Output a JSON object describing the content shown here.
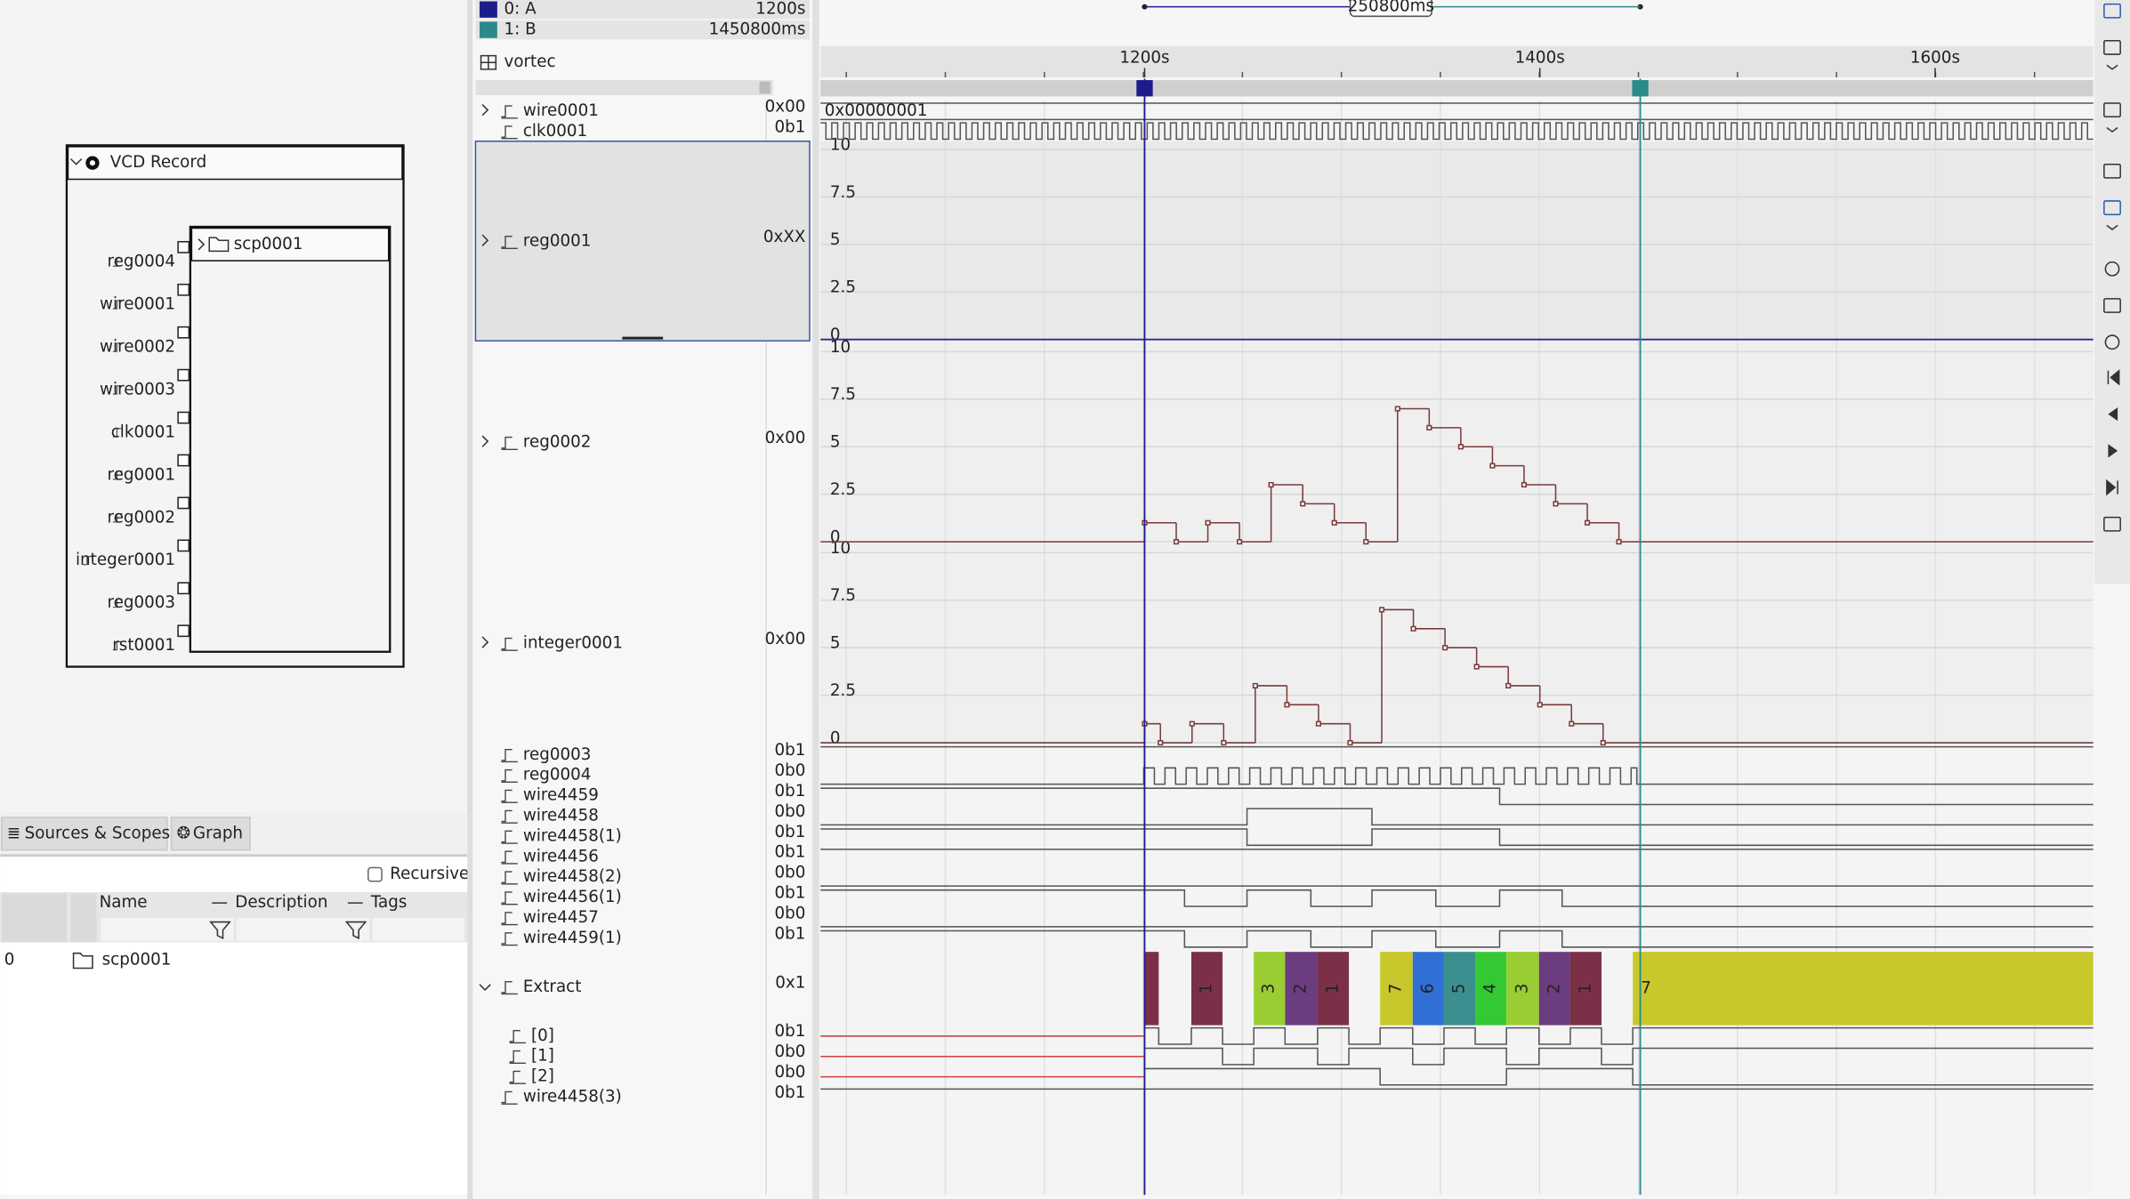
{
  "cursors": [
    {
      "name": "0: A",
      "time": "1200s",
      "position": 1200,
      "color": "#1c1c8c"
    },
    {
      "name": "1: B",
      "time": "1450800ms",
      "position": 1450.8,
      "color": "#2a8a8a"
    }
  ],
  "cursor_delta": "250800ms",
  "timeline": {
    "xlim": [
      1036,
      1680
    ],
    "xticks": [
      {
        "value": 1200,
        "label": "1200s"
      },
      {
        "value": 1400,
        "label": "1400s"
      },
      {
        "value": 1600,
        "label": "1600s"
      }
    ]
  },
  "scope_root": "vortec",
  "signals": [
    {
      "name": "wire0001",
      "value": "0x00"
    },
    {
      "name": "clk0001",
      "value": "0b1"
    },
    {
      "name": "reg0001",
      "value": "0xXX"
    },
    {
      "name": "reg0002",
      "value": "0x00"
    },
    {
      "name": "integer0001",
      "value": "0x00"
    },
    {
      "name": "reg0003",
      "value": "0b1"
    },
    {
      "name": "reg0004",
      "value": "0b0"
    },
    {
      "name": "wire4459",
      "value": "0b1"
    },
    {
      "name": "wire4458",
      "value": "0b0"
    },
    {
      "name": "wire4458(1)",
      "value": "0b1"
    },
    {
      "name": "wire4456",
      "value": "0b1"
    },
    {
      "name": "wire4458(2)",
      "value": "0b0"
    },
    {
      "name": "wire4456(1)",
      "value": "0b1"
    },
    {
      "name": "wire4457",
      "value": "0b0"
    },
    {
      "name": "wire4459(1)",
      "value": "0b1"
    },
    {
      "name": "Extract",
      "value": "0x1"
    },
    {
      "name": "[0]",
      "value": "0b1"
    },
    {
      "name": "[1]",
      "value": "0b0"
    },
    {
      "name": "[2]",
      "value": "0b0"
    },
    {
      "name": "wire4458(3)",
      "value": "0b1"
    }
  ],
  "bus_value": "0x00000001",
  "analog": {
    "ylim": [
      0,
      10
    ],
    "yticks": [
      0,
      2.5,
      5,
      7.5,
      10
    ]
  },
  "reg0002": {
    "x": [
      1200,
      1216,
      1232,
      1248,
      1264,
      1280,
      1296,
      1312,
      1328,
      1344,
      1360,
      1376,
      1392,
      1408,
      1424,
      1440
    ],
    "values": [
      1,
      0,
      1,
      0,
      3,
      2,
      1,
      0,
      7,
      6,
      5,
      4,
      3,
      2,
      1,
      0
    ]
  },
  "integer0001": {
    "x": [
      1200,
      1208,
      1224,
      1240,
      1256,
      1272,
      1288,
      1304,
      1320,
      1336,
      1352,
      1368,
      1384,
      1400,
      1416,
      1432
    ],
    "values": [
      1,
      0,
      1,
      0,
      3,
      2,
      1,
      0,
      7,
      6,
      5,
      4,
      3,
      2,
      1,
      0
    ]
  },
  "extract_labels": [
    "1",
    "3",
    "2",
    "1",
    "7",
    "6",
    "5",
    "4",
    "3",
    "2",
    "1",
    "7"
  ],
  "graph": {
    "node": "VCD Record",
    "scope": "scp0001",
    "ports": [
      "reg0004",
      "wire0001",
      "wire0002",
      "wire0003",
      "clk0001",
      "reg0001",
      "reg0002",
      "integer0001",
      "reg0003",
      "rst0001"
    ]
  },
  "tabs": [
    "Sources & Scopes",
    "Graph"
  ],
  "recursive": "Recursive",
  "columns": [
    "Name",
    "Description",
    "Tags"
  ],
  "rows": [
    [
      "0",
      "scp0001"
    ]
  ]
}
